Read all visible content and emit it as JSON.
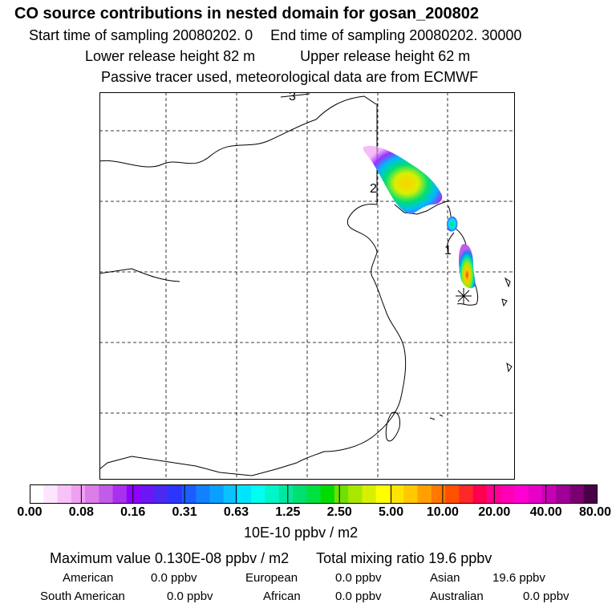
{
  "header": {
    "title": "CO  source contributions in nested domain for gosan_200802",
    "start_label": "Start time of sampling 20080202.     0",
    "end_label": "End time of sampling 20080202. 30000",
    "lower_label": "Lower release height   82 m",
    "upper_label": "Upper release height   62 m",
    "note": "Passive tracer used, meteorological data are from ECMWF"
  },
  "map": {
    "markers": [
      "3",
      "2",
      "1"
    ],
    "receptor_symbol": "✶"
  },
  "colorbar": {
    "colors": [
      "#ffffff",
      "#fde6fd",
      "#f7c3f7",
      "#efa0f2",
      "#da7ee8",
      "#c25be8",
      "#aa2ff0",
      "#9000ff",
      "#6b16f5",
      "#4a2af0",
      "#2c34ff",
      "#1d5cff",
      "#1280ff",
      "#0ba0ff",
      "#08c3ff",
      "#00e5ff",
      "#00ffee",
      "#00f5c8",
      "#00e8a0",
      "#00e070",
      "#00e040",
      "#00dc00",
      "#70e000",
      "#a8e800",
      "#d8f000",
      "#ffff00",
      "#ffe400",
      "#ffc800",
      "#ffa000",
      "#ff7800",
      "#ff5000",
      "#ff2828",
      "#ff0050",
      "#ff0090",
      "#ff00b4",
      "#ff00d2",
      "#e800c8",
      "#c800b4",
      "#a00096",
      "#7a0070",
      "#4a0046"
    ],
    "ticks": [
      "0.00",
      "0.08",
      "0.16",
      "0.31",
      "0.63",
      "1.25",
      "2.50",
      "5.00",
      "10.00",
      "20.00",
      "40.00",
      "80.00"
    ],
    "units": "10E-10 ppbv / m2"
  },
  "summary": {
    "max_value": "Maximum value  0.130E-08 ppbv / m2",
    "total_mixing": "Total mixing ratio       19.6 ppbv"
  },
  "contributions": [
    {
      "label": "American",
      "value": "0.0 ppbv"
    },
    {
      "label": "European",
      "value": "0.0 ppbv"
    },
    {
      "label": "Asian",
      "value": "19.6 ppbv"
    },
    {
      "label": "South American",
      "value": "0.0 ppbv"
    },
    {
      "label": "African",
      "value": "0.0 ppbv"
    },
    {
      "label": "Australian",
      "value": "0.0 ppbv"
    }
  ]
}
